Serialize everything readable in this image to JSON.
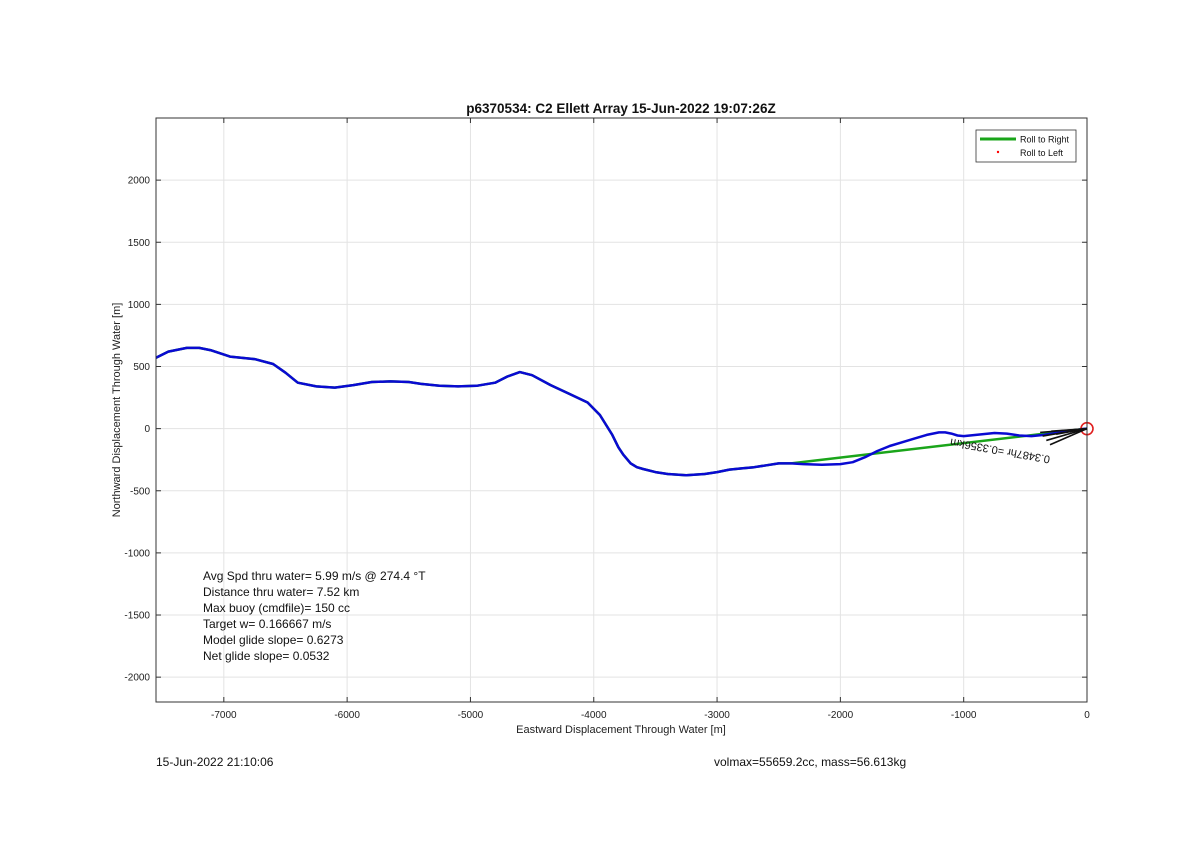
{
  "chart_data": {
    "type": "line",
    "title": "p6370534: C2 Ellett Array 15-Jun-2022 19:07:26Z",
    "xlabel": "Eastward Displacement Through Water [m]",
    "ylabel": "Northward Displacement Through Water [m]",
    "xlim": [
      -7550,
      0
    ],
    "ylim": [
      -2200,
      2500
    ],
    "xticks": [
      -7000,
      -6000,
      -5000,
      -4000,
      -3000,
      -2000,
      -1000,
      0
    ],
    "yticks": [
      -2000,
      -1500,
      -1000,
      -500,
      0,
      500,
      1000,
      1500,
      2000
    ],
    "grid": true,
    "legend_position": "top-right",
    "series": [
      {
        "name": "Roll to Right",
        "color": "#1aa51a",
        "x": [
          -7550,
          -7450,
          -7300,
          -7200,
          -7100,
          -6950,
          -6750,
          -6600,
          -6500,
          -6400,
          -6250,
          -6100,
          -5950,
          -5800,
          -5650,
          -5500,
          -5400,
          -5250,
          -5100,
          -4950,
          -4800,
          -4700,
          -4600,
          -4500,
          -4350,
          -4200,
          -4050,
          -3950,
          -3850,
          -3800,
          -3760,
          -3700,
          -3650,
          -3600,
          -3500,
          -3400,
          -3250,
          -3100,
          -3000,
          -2900,
          -2800,
          -2700,
          -2600,
          -2500,
          -2400,
          0
        ],
        "y": [
          570,
          620,
          650,
          650,
          630,
          580,
          560,
          520,
          450,
          370,
          340,
          330,
          350,
          375,
          380,
          375,
          360,
          345,
          340,
          345,
          370,
          420,
          455,
          430,
          350,
          280,
          210,
          110,
          -50,
          -150,
          -210,
          -280,
          -310,
          -325,
          -350,
          -365,
          -375,
          -365,
          -350,
          -330,
          -320,
          -310,
          -295,
          -280,
          -280,
          0
        ]
      },
      {
        "name": "Roll to Left",
        "color": "#ff0000",
        "x": [],
        "y": []
      },
      {
        "name": "",
        "color": "#0a0ad2",
        "x": [
          -7550,
          -7450,
          -7300,
          -7200,
          -7100,
          -6950,
          -6750,
          -6600,
          -6500,
          -6400,
          -6250,
          -6100,
          -5950,
          -5800,
          -5650,
          -5500,
          -5400,
          -5250,
          -5100,
          -4950,
          -4800,
          -4700,
          -4600,
          -4500,
          -4350,
          -4200,
          -4050,
          -3950,
          -3850,
          -3800,
          -3760,
          -3700,
          -3650,
          -3600,
          -3500,
          -3400,
          -3250,
          -3100,
          -3000,
          -2900,
          -2800,
          -2700,
          -2600,
          -2500,
          -2400,
          -2300,
          -2150,
          -2000,
          -1900,
          -1800,
          -1700,
          -1600,
          -1500,
          -1400,
          -1300,
          -1200,
          -1150,
          -1100,
          -1050,
          -1000,
          -950,
          -850,
          -750,
          -650,
          -550,
          -450,
          -350,
          -250,
          -150,
          -50,
          0
        ],
        "y": [
          570,
          620,
          650,
          650,
          630,
          580,
          560,
          520,
          450,
          370,
          340,
          330,
          350,
          375,
          380,
          375,
          360,
          345,
          340,
          345,
          370,
          420,
          455,
          430,
          350,
          280,
          210,
          110,
          -50,
          -150,
          -210,
          -280,
          -310,
          -325,
          -350,
          -365,
          -375,
          -365,
          -350,
          -330,
          -320,
          -310,
          -295,
          -280,
          -280,
          -285,
          -290,
          -285,
          -270,
          -230,
          -180,
          -140,
          -110,
          -80,
          -50,
          -30,
          -30,
          -40,
          -55,
          -60,
          -55,
          -45,
          -35,
          -40,
          -55,
          -60,
          -50,
          -35,
          -20,
          -5,
          0
        ]
      }
    ],
    "start_marker": {
      "x": 0,
      "y": 0,
      "color": "#e02020"
    },
    "annotations": [
      {
        "label": "t=0.3487hr",
        "text": "0.3487hr =0.3356km",
        "x": -700,
        "y": -150,
        "rotation_deg": 180
      }
    ],
    "stats": [
      "Avg Spd thru water=  5.99 m/s @ 274.4 °T",
      "Distance thru water=  7.52 km",
      "Max buoy (cmdfile)= 150 cc",
      "Target w= 0.166667 m/s",
      "Model glide slope= 0.6273",
      "Net glide slope= 0.0532"
    ]
  },
  "footer": {
    "date": "15-Jun-2022 21:10:06",
    "info": "volmax=55659.2cc, mass=56.613kg"
  }
}
